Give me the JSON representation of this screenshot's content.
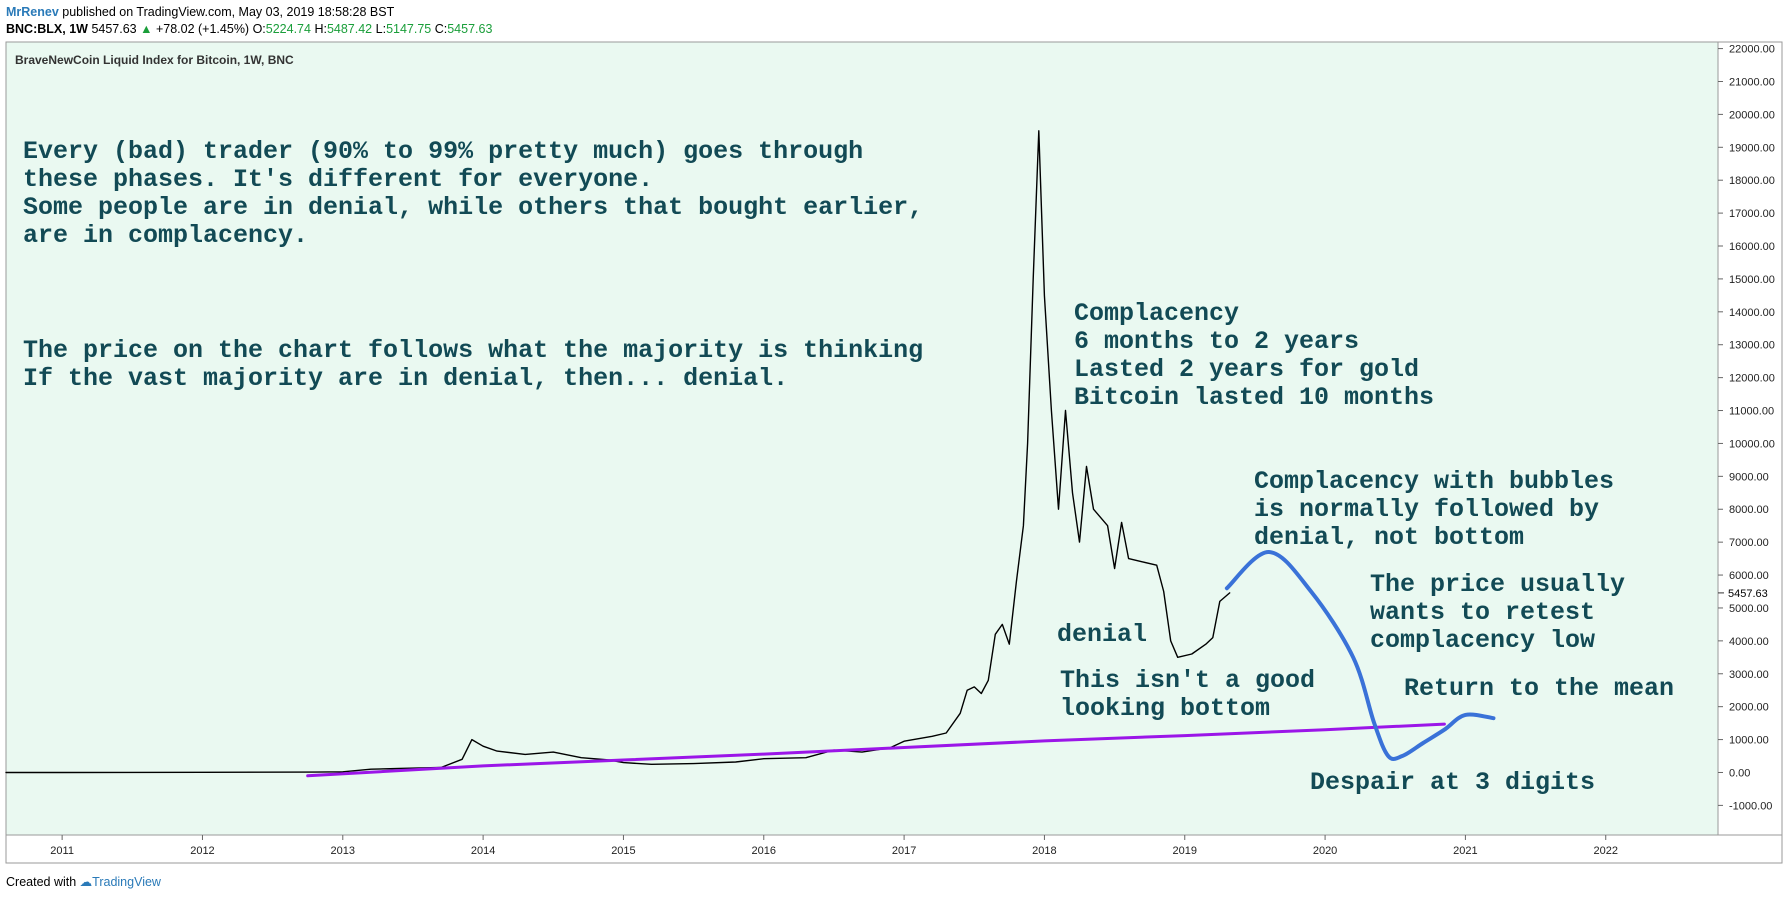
{
  "header": {
    "user": "MrRenev",
    "published": "published on TradingView.com, May 03, 2019 18:58:28 BST",
    "symbol": "BNC:BLX, 1W",
    "last": "5457.63",
    "change": "+78.02 (+1.45%)",
    "o_label": "O:",
    "o_value": "5224.74",
    "h_label": "H:",
    "h_value": "5487.42",
    "l_label": "L:",
    "l_value": "5147.75",
    "c_label": "C:",
    "c_value": "5457.63"
  },
  "footer": {
    "created_with": "Created with",
    "brand": "TradingView"
  },
  "colors": {
    "background": "#eaf9f1",
    "trendline": "#9b16e8",
    "projection": "#3a72d8",
    "annotation": "#124a55",
    "candles": "#000000"
  },
  "chart_data": {
    "type": "line",
    "title": "BraveNewCoin Liquid Index for Bitcoin, 1W, BNC",
    "xlabel": "",
    "ylabel": "",
    "x_ticks": [
      "2011",
      "2012",
      "2013",
      "2014",
      "2015",
      "2016",
      "2017",
      "2018",
      "2019",
      "2020",
      "2021",
      "2022"
    ],
    "y_ticks": [
      "-1000.00",
      "0.00",
      "1000.00",
      "2000.00",
      "3000.00",
      "4000.00",
      "5000.00",
      "6000.00",
      "7000.00",
      "8000.00",
      "9000.00",
      "10000.00",
      "11000.00",
      "12000.00",
      "13000.00",
      "14000.00",
      "15000.00",
      "16000.00",
      "17000.00",
      "18000.00",
      "19000.00",
      "20000.00",
      "21000.00",
      "22000.00"
    ],
    "xlim": [
      2010.6,
      2022.8
    ],
    "ylim": [
      -1900,
      22200
    ],
    "last_price_label": "5457.63",
    "series": [
      {
        "values": [
          [
            2010.6,
            0
          ],
          [
            2011.0,
            0
          ],
          [
            2012.0,
            5
          ],
          [
            2012.8,
            12
          ],
          [
            2013.0,
            20
          ],
          [
            2013.2,
            100
          ],
          [
            2013.4,
            120
          ],
          [
            2013.7,
            150
          ],
          [
            2013.85,
            400
          ],
          [
            2013.92,
            1000
          ],
          [
            2014.0,
            800
          ],
          [
            2014.1,
            650
          ],
          [
            2014.3,
            550
          ],
          [
            2014.5,
            620
          ],
          [
            2014.7,
            450
          ],
          [
            2014.9,
            380
          ],
          [
            2015.0,
            300
          ],
          [
            2015.2,
            250
          ],
          [
            2015.5,
            270
          ],
          [
            2015.8,
            320
          ],
          [
            2016.0,
            420
          ],
          [
            2016.3,
            450
          ],
          [
            2016.5,
            680
          ],
          [
            2016.7,
            620
          ],
          [
            2016.9,
            750
          ],
          [
            2017.0,
            950
          ],
          [
            2017.2,
            1100
          ],
          [
            2017.3,
            1200
          ],
          [
            2017.4,
            1800
          ],
          [
            2017.45,
            2500
          ],
          [
            2017.5,
            2600
          ],
          [
            2017.55,
            2400
          ],
          [
            2017.6,
            2800
          ],
          [
            2017.65,
            4200
          ],
          [
            2017.7,
            4500
          ],
          [
            2017.75,
            3900
          ],
          [
            2017.8,
            5800
          ],
          [
            2017.85,
            7500
          ],
          [
            2017.88,
            10000
          ],
          [
            2017.92,
            15000
          ],
          [
            2017.96,
            19500
          ],
          [
            2017.98,
            17000
          ],
          [
            2018.0,
            14500
          ],
          [
            2018.05,
            11000
          ],
          [
            2018.1,
            8000
          ],
          [
            2018.15,
            11000
          ],
          [
            2018.2,
            8500
          ],
          [
            2018.25,
            7000
          ],
          [
            2018.3,
            9300
          ],
          [
            2018.35,
            8000
          ],
          [
            2018.45,
            7500
          ],
          [
            2018.5,
            6200
          ],
          [
            2018.55,
            7600
          ],
          [
            2018.6,
            6500
          ],
          [
            2018.7,
            6400
          ],
          [
            2018.8,
            6300
          ],
          [
            2018.85,
            5500
          ],
          [
            2018.9,
            4000
          ],
          [
            2018.95,
            3500
          ],
          [
            2019.05,
            3600
          ],
          [
            2019.15,
            3900
          ],
          [
            2019.2,
            4100
          ],
          [
            2019.25,
            5200
          ],
          [
            2019.32,
            5457.63
          ]
        ]
      },
      {
        "values": [
          [
            2012.75,
            -100
          ],
          [
            2014.0,
            200
          ],
          [
            2015.0,
            380
          ],
          [
            2016.0,
            560
          ],
          [
            2017.0,
            760
          ],
          [
            2018.0,
            960
          ],
          [
            2019.0,
            1120
          ],
          [
            2020.0,
            1300
          ],
          [
            2020.85,
            1470
          ]
        ]
      },
      {
        "values": [
          [
            2019.3,
            5600
          ],
          [
            2019.6,
            6700
          ],
          [
            2019.9,
            5500
          ],
          [
            2020.2,
            3500
          ],
          [
            2020.35,
            1500
          ],
          [
            2020.45,
            500
          ],
          [
            2020.55,
            500
          ],
          [
            2020.7,
            900
          ],
          [
            2020.85,
            1300
          ],
          [
            2021.0,
            1750
          ],
          [
            2021.2,
            1650
          ]
        ]
      }
    ],
    "annotations": [
      "Every (bad) trader (90% to 99% pretty much) goes through",
      "these phases. It's different for everyone.",
      "Some people are in denial, while others that bought earlier,",
      "are in complacency.",
      "The price on the chart follows what the majority is thinking",
      "If the vast majority are in denial, then... denial.",
      "Complacency",
      "6 months to 2 years",
      "Lasted 2 years for gold",
      "Bitcoin lasted 10 months",
      "Complacency with bubbles",
      "is normally followed by",
      "denial, not bottom",
      "The price usually",
      "wants to retest",
      "complacency low",
      "denial",
      "This isn't a good",
      "looking bottom",
      "Return to the mean",
      "Despair at 3 digits"
    ]
  }
}
